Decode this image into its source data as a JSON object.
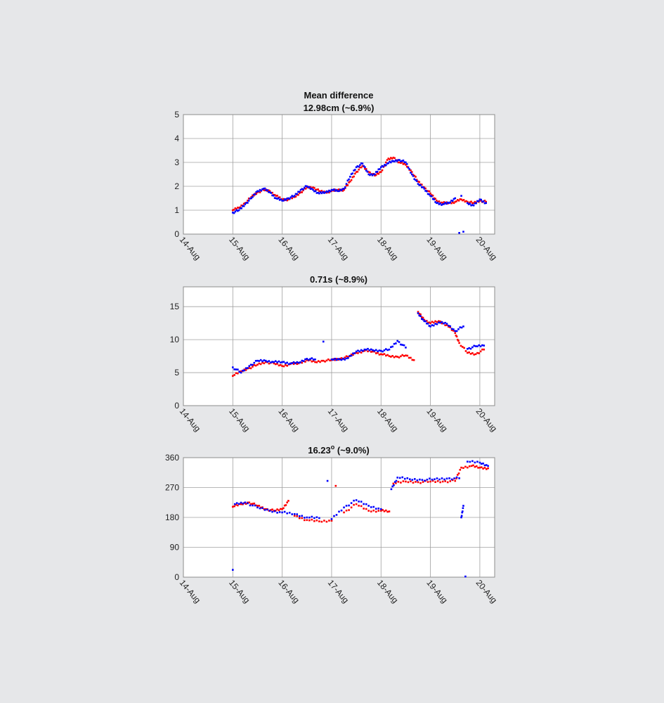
{
  "figure": {
    "title_line1": "Mean difference",
    "background": "#e6e7e9",
    "series_colors": {
      "red": "#ff0000",
      "blue": "#0000ff"
    }
  },
  "chart_data": [
    {
      "type": "scatter",
      "title": "12.98cm (~6.9%)",
      "x_tick_labels": [
        "14-Aug",
        "15-Aug",
        "16-Aug",
        "17-Aug",
        "18-Aug",
        "19-Aug",
        "20-Aug"
      ],
      "x_ticks": [
        "14-Aug",
        "15-Aug",
        "16-Aug",
        "17-Aug",
        "18-Aug",
        "19-Aug",
        "20-Aug"
      ],
      "xlim": [
        "14-Aug",
        "20-Aug (+0.3 d)"
      ],
      "yticks": [
        0,
        1,
        2,
        3,
        4,
        5
      ],
      "ylim": [
        0,
        5
      ],
      "grid": true,
      "series": [
        {
          "color": "#ff0000",
          "points": [
            [
              "15-Aug 00:00",
              1.0
            ],
            [
              "15-Aug 03:00",
              1.1
            ],
            [
              "15-Aug 06:00",
              1.3
            ],
            [
              "15-Aug 09:00",
              1.55
            ],
            [
              "15-Aug 12:00",
              1.75
            ],
            [
              "15-Aug 15:00",
              1.85
            ],
            [
              "15-Aug 18:00",
              1.8
            ],
            [
              "15-Aug 21:00",
              1.6
            ],
            [
              "16-Aug 00:00",
              1.45
            ],
            [
              "16-Aug 03:00",
              1.45
            ],
            [
              "16-Aug 06:00",
              1.55
            ],
            [
              "16-Aug 09:00",
              1.75
            ],
            [
              "16-Aug 12:00",
              1.95
            ],
            [
              "16-Aug 15:00",
              1.95
            ],
            [
              "16-Aug 18:00",
              1.8
            ],
            [
              "16-Aug 21:00",
              1.75
            ],
            [
              "17-Aug 00:00",
              1.8
            ],
            [
              "17-Aug 03:00",
              1.85
            ],
            [
              "17-Aug 06:00",
              1.85
            ],
            [
              "17-Aug 09:00",
              2.2
            ],
            [
              "17-Aug 12:00",
              2.6
            ],
            [
              "17-Aug 15:00",
              2.85
            ],
            [
              "17-Aug 18:00",
              2.6
            ],
            [
              "17-Aug 21:00",
              2.45
            ],
            [
              "18-Aug 00:00",
              2.6
            ],
            [
              "18-Aug 03:00",
              3.1
            ],
            [
              "18-Aug 06:00",
              3.2
            ],
            [
              "18-Aug 09:00",
              3.0
            ],
            [
              "18-Aug 12:00",
              2.9
            ],
            [
              "18-Aug 15:00",
              2.6
            ],
            [
              "18-Aug 18:00",
              2.2
            ],
            [
              "18-Aug 21:00",
              1.95
            ],
            [
              "19-Aug 00:00",
              1.7
            ],
            [
              "19-Aug 03:00",
              1.4
            ],
            [
              "19-Aug 06:00",
              1.3
            ],
            [
              "19-Aug 09:00",
              1.3
            ],
            [
              "19-Aug 12:00",
              1.35
            ],
            [
              "19-Aug 15:00",
              1.45
            ],
            [
              "19-Aug 18:00",
              1.35
            ],
            [
              "19-Aug 21:00",
              1.3
            ],
            [
              "20-Aug 00:00",
              1.4
            ],
            [
              "20-Aug 03:00",
              1.35
            ]
          ]
        },
        {
          "color": "#0000ff",
          "points": [
            [
              "15-Aug 00:00",
              0.9
            ],
            [
              "15-Aug 03:00",
              1.0
            ],
            [
              "15-Aug 06:00",
              1.25
            ],
            [
              "15-Aug 09:00",
              1.5
            ],
            [
              "15-Aug 12:00",
              1.8
            ],
            [
              "15-Aug 15:00",
              1.9
            ],
            [
              "15-Aug 18:00",
              1.75
            ],
            [
              "15-Aug 21:00",
              1.5
            ],
            [
              "16-Aug 00:00",
              1.4
            ],
            [
              "16-Aug 03:00",
              1.5
            ],
            [
              "16-Aug 06:00",
              1.6
            ],
            [
              "16-Aug 09:00",
              1.85
            ],
            [
              "16-Aug 12:00",
              2.0
            ],
            [
              "16-Aug 15:00",
              1.85
            ],
            [
              "16-Aug 18:00",
              1.7
            ],
            [
              "16-Aug 21:00",
              1.75
            ],
            [
              "17-Aug 00:00",
              1.85
            ],
            [
              "17-Aug 03:00",
              1.8
            ],
            [
              "17-Aug 06:00",
              1.9
            ],
            [
              "17-Aug 09:00",
              2.4
            ],
            [
              "17-Aug 12:00",
              2.8
            ],
            [
              "17-Aug 15:00",
              2.95
            ],
            [
              "17-Aug 18:00",
              2.5
            ],
            [
              "17-Aug 21:00",
              2.5
            ],
            [
              "18-Aug 00:00",
              2.8
            ],
            [
              "18-Aug 03:00",
              2.95
            ],
            [
              "18-Aug 06:00",
              3.05
            ],
            [
              "18-Aug 09:00",
              3.1
            ],
            [
              "18-Aug 12:00",
              3.0
            ],
            [
              "18-Aug 15:00",
              2.5
            ],
            [
              "18-Aug 18:00",
              2.1
            ],
            [
              "18-Aug 21:00",
              1.9
            ],
            [
              "19-Aug 00:00",
              1.6
            ],
            [
              "19-Aug 03:00",
              1.3
            ],
            [
              "19-Aug 06:00",
              1.25
            ],
            [
              "19-Aug 09:00",
              1.3
            ],
            [
              "19-Aug 12:00",
              1.5
            ],
            [
              "19-Aug 15:00",
              1.6
            ],
            [
              "19-Aug 18:00",
              1.3
            ],
            [
              "19-Aug 21:00",
              1.2
            ],
            [
              "20-Aug 00:00",
              1.45
            ],
            [
              "20-Aug 03:00",
              1.3
            ],
            [
              "19-Aug 14:00",
              0.05
            ],
            [
              "19-Aug 16:00",
              0.1
            ]
          ]
        }
      ]
    },
    {
      "type": "scatter",
      "title": "0.71s (~8.9%)",
      "x_tick_labels": [
        "14-Aug",
        "15-Aug",
        "16-Aug",
        "17-Aug",
        "18-Aug",
        "19-Aug",
        "20-Aug"
      ],
      "x_ticks": [
        "14-Aug",
        "15-Aug",
        "16-Aug",
        "17-Aug",
        "18-Aug",
        "19-Aug",
        "20-Aug"
      ],
      "xlim": [
        "14-Aug",
        "20-Aug (+0.3 d)"
      ],
      "yticks": [
        0,
        5,
        10,
        15
      ],
      "ylim": [
        0,
        18
      ],
      "grid": true,
      "series": [
        {
          "color": "#ff0000",
          "points": [
            [
              "15-Aug 00:00",
              4.5
            ],
            [
              "15-Aug 04:00",
              5.2
            ],
            [
              "15-Aug 08:00",
              5.7
            ],
            [
              "15-Aug 12:00",
              6.2
            ],
            [
              "15-Aug 16:00",
              6.6
            ],
            [
              "15-Aug 20:00",
              6.4
            ],
            [
              "16-Aug 00:00",
              6.0
            ],
            [
              "16-Aug 04:00",
              6.3
            ],
            [
              "16-Aug 08:00",
              6.4
            ],
            [
              "16-Aug 12:00",
              6.9
            ],
            [
              "16-Aug 16:00",
              6.6
            ],
            [
              "16-Aug 20:00",
              6.8
            ],
            [
              "17-Aug 00:00",
              6.9
            ],
            [
              "17-Aug 04:00",
              7.1
            ],
            [
              "17-Aug 08:00",
              7.4
            ],
            [
              "17-Aug 12:00",
              8.0
            ],
            [
              "17-Aug 16:00",
              8.3
            ],
            [
              "17-Aug 20:00",
              8.2
            ],
            [
              "18-Aug 00:00",
              7.8
            ],
            [
              "18-Aug 04:00",
              7.5
            ],
            [
              "18-Aug 08:00",
              7.4
            ],
            [
              "18-Aug 12:00",
              7.6
            ],
            [
              "18-Aug 16:00",
              6.9
            ],
            [
              "18-Aug 18:00",
              14.2
            ],
            [
              "18-Aug 21:00",
              13.0
            ],
            [
              "19-Aug 00:00",
              12.5
            ],
            [
              "19-Aug 04:00",
              12.8
            ],
            [
              "19-Aug 08:00",
              12.2
            ],
            [
              "19-Aug 12:00",
              11.0
            ],
            [
              "19-Aug 14:00",
              9.5
            ],
            [
              "19-Aug 18:00",
              8.0
            ],
            [
              "19-Aug 22:00",
              7.8
            ],
            [
              "20-Aug 02:00",
              8.5
            ]
          ]
        },
        {
          "color": "#0000ff",
          "points": [
            [
              "15-Aug 00:00",
              5.8
            ],
            [
              "15-Aug 04:00",
              5.0
            ],
            [
              "15-Aug 08:00",
              6.0
            ],
            [
              "15-Aug 12:00",
              6.8
            ],
            [
              "15-Aug 16:00",
              6.8
            ],
            [
              "15-Aug 20:00",
              6.6
            ],
            [
              "16-Aug 00:00",
              6.6
            ],
            [
              "16-Aug 04:00",
              6.4
            ],
            [
              "16-Aug 08:00",
              6.5
            ],
            [
              "16-Aug 12:00",
              7.1
            ],
            [
              "16-Aug 16:00",
              7.0
            ],
            [
              "16-Aug 20:00",
              9.7
            ],
            [
              "17-Aug 00:00",
              7.0
            ],
            [
              "17-Aug 04:00",
              7.0
            ],
            [
              "17-Aug 08:00",
              7.2
            ],
            [
              "17-Aug 12:00",
              8.2
            ],
            [
              "17-Aug 16:00",
              8.5
            ],
            [
              "17-Aug 20:00",
              8.4
            ],
            [
              "18-Aug 00:00",
              8.3
            ],
            [
              "18-Aug 04:00",
              8.5
            ],
            [
              "18-Aug 08:00",
              9.8
            ],
            [
              "18-Aug 12:00",
              8.8
            ],
            [
              "18-Aug 18:00",
              14.0
            ],
            [
              "18-Aug 21:00",
              12.8
            ],
            [
              "19-Aug 00:00",
              12.0
            ],
            [
              "19-Aug 04:00",
              12.6
            ],
            [
              "19-Aug 08:00",
              12.4
            ],
            [
              "19-Aug 12:00",
              11.3
            ],
            [
              "19-Aug 16:00",
              12.0
            ],
            [
              "19-Aug 18:00",
              8.6
            ],
            [
              "19-Aug 22:00",
              9.0
            ],
            [
              "20-Aug 02:00",
              9.1
            ]
          ]
        }
      ]
    },
    {
      "type": "scatter",
      "title": "16.23° (~9.0%)",
      "title_number": "16.23",
      "title_superscript": "o",
      "title_rest": " (~9.0%)",
      "x_tick_labels": [
        "14-Aug",
        "15-Aug",
        "16-Aug",
        "17-Aug",
        "18-Aug",
        "19-Aug",
        "20-Aug"
      ],
      "x_ticks": [
        "14-Aug",
        "15-Aug",
        "16-Aug",
        "17-Aug",
        "18-Aug",
        "19-Aug",
        "20-Aug"
      ],
      "xlim": [
        "14-Aug",
        "20-Aug (+0.3 d)"
      ],
      "yticks": [
        0,
        90,
        180,
        270,
        360
      ],
      "ylim": [
        0,
        360
      ],
      "grid": true,
      "series": [
        {
          "color": "#ff0000",
          "points": [
            [
              "15-Aug 00:00",
              212
            ],
            [
              "15-Aug 04:00",
              220
            ],
            [
              "15-Aug 08:00",
              225
            ],
            [
              "15-Aug 12:00",
              215
            ],
            [
              "15-Aug 16:00",
              205
            ],
            [
              "15-Aug 20:00",
              200
            ],
            [
              "16-Aug 00:00",
              205
            ],
            [
              "16-Aug 03:00",
              230
            ],
            [
              "16-Aug 06:00",
              185
            ],
            [
              "16-Aug 12:00",
              172
            ],
            [
              "16-Aug 18:00",
              168
            ],
            [
              "17-Aug 00:00",
              170
            ],
            [
              "17-Aug 02:00",
              275
            ],
            [
              "17-Aug 06:00",
              195
            ],
            [
              "17-Aug 12:00",
              220
            ],
            [
              "17-Aug 18:00",
              200
            ],
            [
              "18-Aug 00:00",
              200
            ],
            [
              "18-Aug 04:00",
              198
            ],
            [
              "18-Aug 06:00",
              282
            ],
            [
              "18-Aug 12:00",
              288
            ],
            [
              "18-Aug 18:00",
              286
            ],
            [
              "19-Aug 00:00",
              288
            ],
            [
              "19-Aug 06:00",
              288
            ],
            [
              "19-Aug 12:00",
              290
            ],
            [
              "19-Aug 15:00",
              330
            ],
            [
              "19-Aug 20:00",
              335
            ],
            [
              "20-Aug 00:00",
              330
            ],
            [
              "20-Aug 04:00",
              328
            ]
          ]
        },
        {
          "color": "#0000ff",
          "points": [
            [
              "15-Aug 00:00",
              22
            ],
            [
              "15-Aug 01:00",
              220
            ],
            [
              "15-Aug 06:00",
              225
            ],
            [
              "15-Aug 12:00",
              210
            ],
            [
              "15-Aug 18:00",
              200
            ],
            [
              "16-Aug 00:00",
              195
            ],
            [
              "16-Aug 06:00",
              190
            ],
            [
              "16-Aug 12:00",
              180
            ],
            [
              "16-Aug 18:00",
              178
            ],
            [
              "16-Aug 22:00",
              290
            ],
            [
              "17-Aug 00:00",
              175
            ],
            [
              "17-Aug 06:00",
              210
            ],
            [
              "17-Aug 12:00",
              232
            ],
            [
              "17-Aug 18:00",
              215
            ],
            [
              "18-Aug 00:00",
              205
            ],
            [
              "18-Aug 05:00",
              265
            ],
            [
              "18-Aug 08:00",
              300
            ],
            [
              "18-Aug 14:00",
              295
            ],
            [
              "18-Aug 20:00",
              293
            ],
            [
              "19-Aug 02:00",
              295
            ],
            [
              "19-Aug 08:00",
              297
            ],
            [
              "19-Aug 14:00",
              298
            ],
            [
              "19-Aug 15:00",
              180
            ],
            [
              "19-Aug 16:00",
              215
            ],
            [
              "19-Aug 17:00",
              2
            ],
            [
              "19-Aug 18:00",
              348
            ],
            [
              "20-Aug 00:00",
              345
            ],
            [
              "20-Aug 04:00",
              335
            ]
          ]
        }
      ]
    }
  ]
}
